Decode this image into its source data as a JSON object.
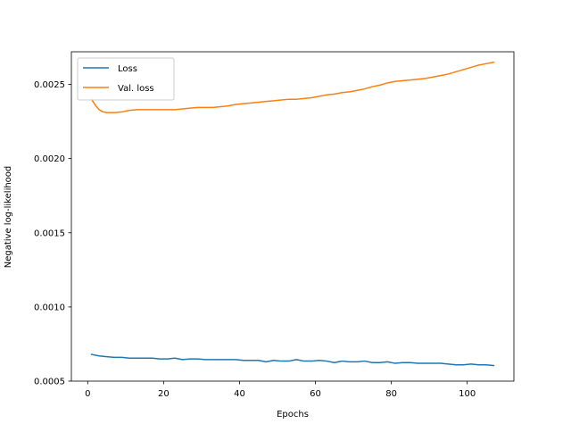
{
  "chart_data": {
    "type": "line",
    "title": "",
    "xlabel": "Epochs",
    "ylabel": "Negative log-likelihood",
    "xlim": [
      -4.3,
      112.3
    ],
    "ylim": [
      0.0005,
      0.00272
    ],
    "xticks": [
      0,
      20,
      40,
      60,
      80,
      100
    ],
    "xtick_labels": [
      "0",
      "20",
      "40",
      "60",
      "80",
      "100"
    ],
    "yticks": [
      0.0005,
      0.001,
      0.0015,
      0.002,
      0.0025
    ],
    "ytick_labels": [
      "0.0005",
      "0.0010",
      "0.0015",
      "0.0020",
      "0.0025"
    ],
    "legend_position": "top-left",
    "grid": false,
    "series": [
      {
        "name": "Loss",
        "color": "#1f77b4",
        "x": [
          1,
          3,
          5,
          7,
          9,
          11,
          13,
          15,
          17,
          19,
          21,
          23,
          25,
          27,
          29,
          31,
          33,
          35,
          37,
          39,
          41,
          43,
          45,
          47,
          49,
          51,
          53,
          55,
          57,
          59,
          61,
          63,
          65,
          67,
          69,
          71,
          73,
          75,
          77,
          79,
          81,
          83,
          85,
          87,
          89,
          91,
          93,
          95,
          97,
          99,
          101,
          103,
          105,
          107
        ],
        "y": [
          0.00068,
          0.00067,
          0.000665,
          0.00066,
          0.00066,
          0.000655,
          0.000655,
          0.000655,
          0.000655,
          0.00065,
          0.00065,
          0.000655,
          0.000645,
          0.00065,
          0.00065,
          0.000645,
          0.000645,
          0.000645,
          0.000645,
          0.000645,
          0.00064,
          0.00064,
          0.00064,
          0.00063,
          0.00064,
          0.000635,
          0.000635,
          0.000645,
          0.000635,
          0.000635,
          0.00064,
          0.000635,
          0.000625,
          0.000635,
          0.00063,
          0.00063,
          0.000635,
          0.000625,
          0.000625,
          0.00063,
          0.00062,
          0.000625,
          0.000625,
          0.00062,
          0.00062,
          0.00062,
          0.00062,
          0.000615,
          0.00061,
          0.00061,
          0.000615,
          0.00061,
          0.00061,
          0.000605
        ]
      },
      {
        "name": "Val. loss",
        "color": "#ff7f0e",
        "x": [
          1,
          2,
          3,
          4,
          5,
          6,
          7,
          9,
          11,
          13,
          15,
          17,
          19,
          21,
          23,
          25,
          27,
          29,
          31,
          33,
          35,
          37,
          39,
          41,
          43,
          45,
          47,
          49,
          51,
          53,
          55,
          57,
          59,
          61,
          63,
          65,
          67,
          69,
          71,
          73,
          75,
          77,
          79,
          81,
          83,
          85,
          87,
          89,
          91,
          93,
          95,
          97,
          99,
          101,
          103,
          105,
          107
        ],
        "y": [
          0.0024,
          0.00236,
          0.00233,
          0.002315,
          0.00231,
          0.00231,
          0.00231,
          0.002315,
          0.002325,
          0.00233,
          0.00233,
          0.00233,
          0.00233,
          0.00233,
          0.00233,
          0.002335,
          0.00234,
          0.002345,
          0.002345,
          0.002345,
          0.00235,
          0.002355,
          0.002365,
          0.00237,
          0.002375,
          0.00238,
          0.002385,
          0.00239,
          0.002395,
          0.0024,
          0.0024,
          0.002405,
          0.00241,
          0.00242,
          0.00243,
          0.002435,
          0.002445,
          0.00245,
          0.00246,
          0.00247,
          0.002485,
          0.002495,
          0.00251,
          0.00252,
          0.002525,
          0.00253,
          0.002535,
          0.00254,
          0.00255,
          0.00256,
          0.00257,
          0.002585,
          0.0026,
          0.002615,
          0.00263,
          0.00264,
          0.00265
        ]
      }
    ]
  }
}
